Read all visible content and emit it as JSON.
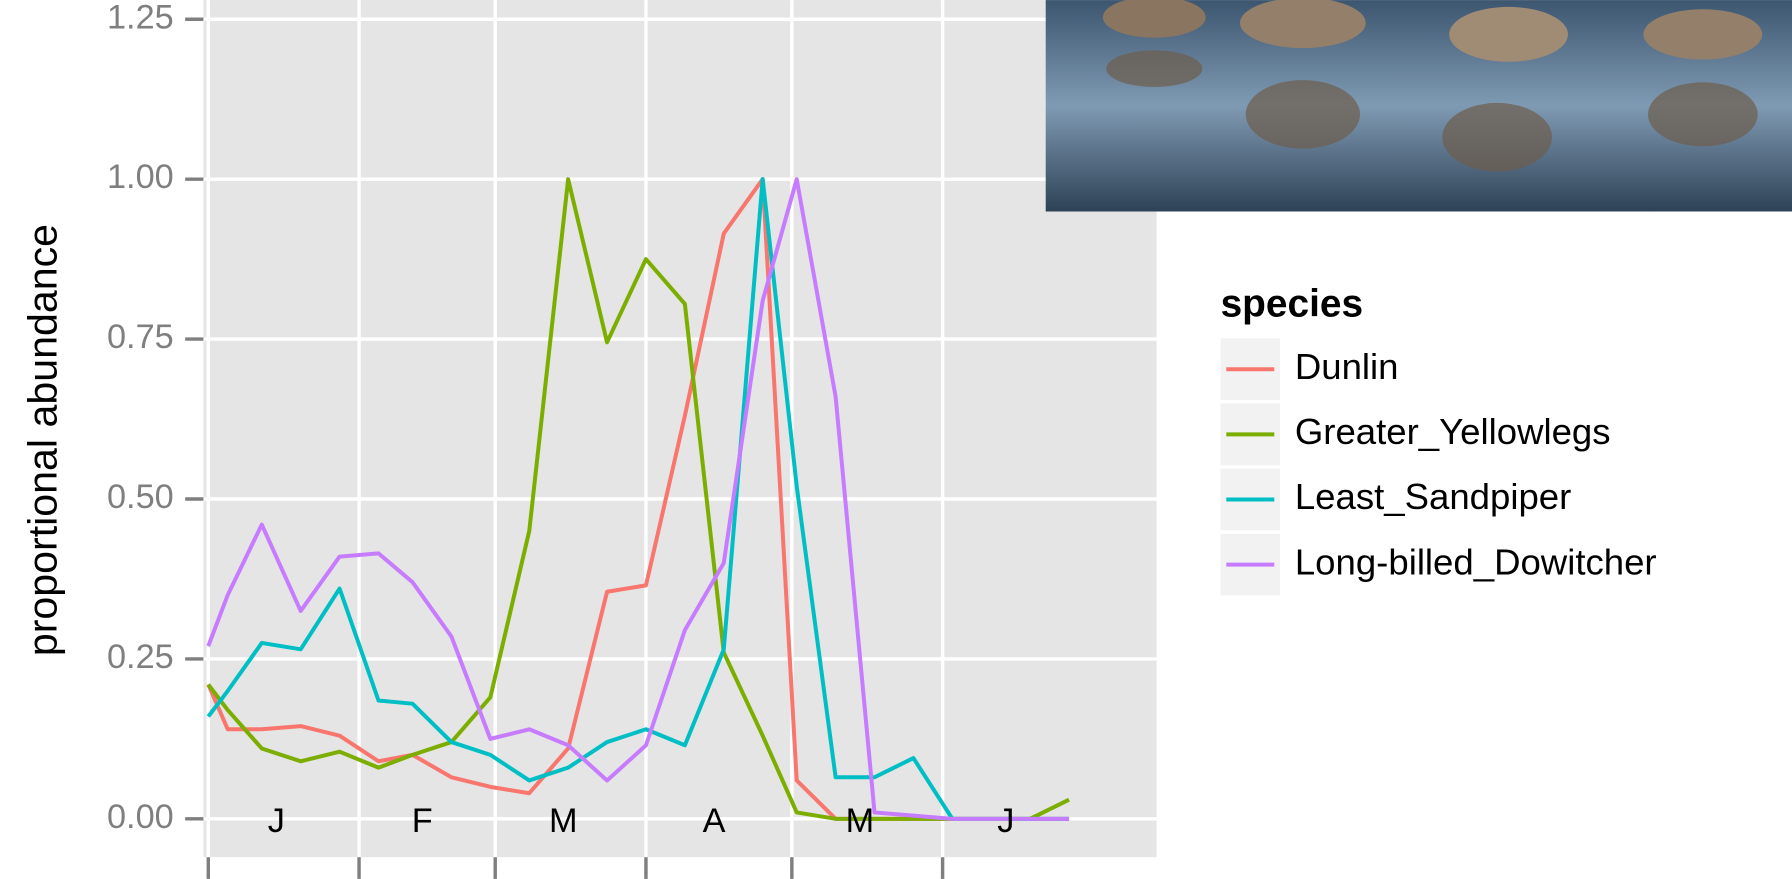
{
  "chart_data": {
    "type": "line",
    "y_label": "proportional abundance",
    "legend_title": "species",
    "x": [
      0,
      4,
      11,
      19,
      27,
      35,
      42,
      50,
      58,
      66,
      74,
      82,
      90,
      98,
      106,
      114,
      121,
      129,
      137,
      145,
      153,
      161,
      169,
      177
    ],
    "xlim": [
      -1,
      195
    ],
    "xticks": [
      0,
      31,
      59,
      90,
      120,
      151
    ],
    "month_labels": [
      {
        "value": 14,
        "label": "J"
      },
      {
        "value": 44,
        "label": "F"
      },
      {
        "value": 73,
        "label": "M"
      },
      {
        "value": 104,
        "label": "A"
      },
      {
        "value": 134,
        "label": "M"
      },
      {
        "value": 164,
        "label": "J"
      }
    ],
    "ylim": [
      -0.06,
      1.28
    ],
    "yticks": [
      {
        "value": 0,
        "label": "0.00"
      },
      {
        "value": 0.25,
        "label": "0.25"
      },
      {
        "value": 0.5,
        "label": "0.50"
      },
      {
        "value": 0.75,
        "label": "0.75"
      },
      {
        "value": 1,
        "label": "1.00"
      },
      {
        "value": 1.25,
        "label": "1.25"
      }
    ],
    "grid": true,
    "series": [
      {
        "name": "Dunlin",
        "color": "#F8766D",
        "values": [
          0.21,
          0.14,
          0.14,
          0.145,
          0.13,
          0.09,
          0.1,
          0.065,
          0.05,
          0.04,
          0.11,
          0.355,
          0.365,
          0.63,
          0.915,
          1.0,
          0.06,
          0,
          0,
          0,
          0,
          0,
          0,
          0
        ]
      },
      {
        "name": "Greater_Yellowlegs",
        "color": "#7CAE00",
        "values": [
          0.21,
          0.17,
          0.11,
          0.09,
          0.105,
          0.08,
          0.1,
          0.12,
          0.19,
          0.45,
          1.0,
          0.745,
          0.875,
          0.805,
          0.26,
          0.13,
          0.01,
          0,
          0,
          0,
          0,
          0,
          0,
          0.03
        ]
      },
      {
        "name": "Least_Sandpiper",
        "color": "#00BFC4",
        "values": [
          0.16,
          0.2,
          0.275,
          0.265,
          0.36,
          0.185,
          0.18,
          0.12,
          0.1,
          0.06,
          0.08,
          0.12,
          0.14,
          0.115,
          0.265,
          1.0,
          0.52,
          0.065,
          0.065,
          0.095,
          0,
          0,
          0,
          0
        ]
      },
      {
        "name": "Long-billed_Dowitcher",
        "color": "#C77CFF",
        "values": [
          0.27,
          0.35,
          0.46,
          0.325,
          0.41,
          0.415,
          0.37,
          0.285,
          0.125,
          0.14,
          0.115,
          0.06,
          0.115,
          0.295,
          0.4,
          0.81,
          1.0,
          0.66,
          0.01,
          0.005,
          0,
          0,
          0,
          0
        ]
      }
    ]
  }
}
